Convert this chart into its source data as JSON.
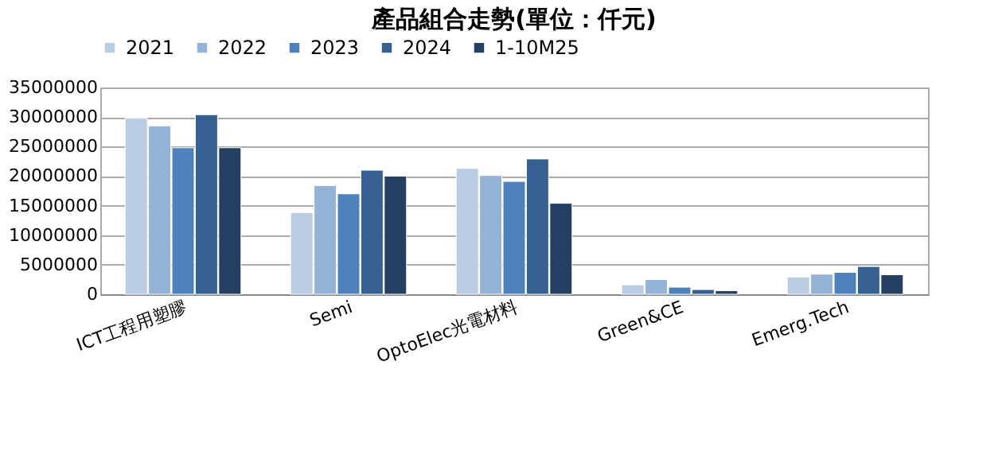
{
  "chart_data": {
    "type": "bar",
    "title": "產品組合走勢(單位：仟元)",
    "categories": [
      "ICT工程用塑膠",
      "Semi",
      "OptoElec光電材料",
      "Green&CE",
      "Emerg.Tech"
    ],
    "series": [
      {
        "name": "2021",
        "color": "#b8cce4",
        "values": [
          29800000,
          13800000,
          21300000,
          1600000,
          2900000
        ]
      },
      {
        "name": "2022",
        "color": "#95b3d7",
        "values": [
          28500000,
          18400000,
          20100000,
          2500000,
          3400000
        ]
      },
      {
        "name": "2023",
        "color": "#4f81bd",
        "values": [
          24800000,
          17000000,
          19100000,
          1200000,
          3700000
        ]
      },
      {
        "name": "2024",
        "color": "#366092",
        "values": [
          30400000,
          21000000,
          22900000,
          800000,
          4700000
        ]
      },
      {
        "name": "1-10M25",
        "color": "#243f60",
        "values": [
          24800000,
          20000000,
          15400000,
          600000,
          3300000
        ]
      }
    ],
    "ylim": [
      0,
      35000000
    ],
    "yticks": [
      0,
      5000000,
      10000000,
      15000000,
      20000000,
      25000000,
      30000000,
      35000000
    ],
    "grid": "y",
    "legend": "top"
  }
}
